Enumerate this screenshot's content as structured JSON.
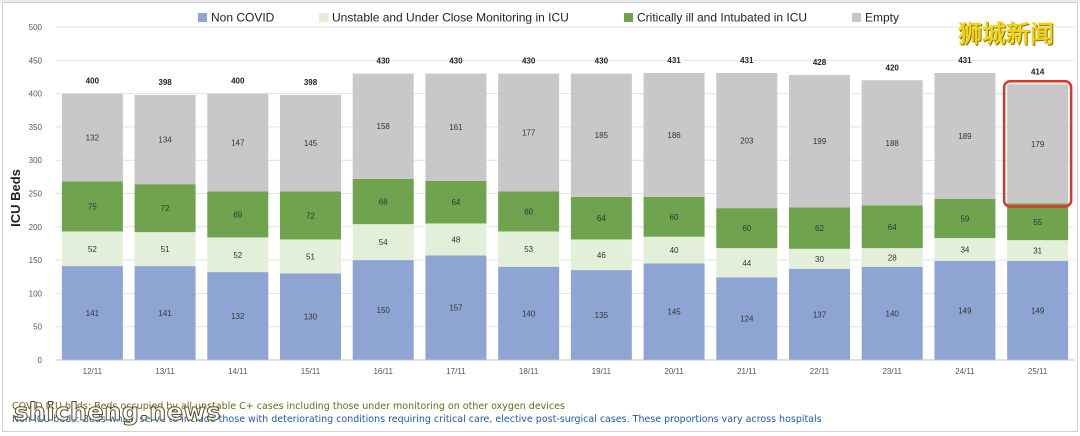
{
  "chart_data": {
    "type": "bar",
    "stacked": true,
    "title": "",
    "xlabel": "",
    "ylabel": "ICU Beds",
    "ylim": [
      0,
      500
    ],
    "yticks": [
      0,
      50,
      100,
      150,
      200,
      250,
      300,
      350,
      400,
      450,
      500
    ],
    "grid": true,
    "legend_position": "top",
    "categories": [
      "12/11",
      "13/11",
      "14/11",
      "15/11",
      "16/11",
      "17/11",
      "18/11",
      "19/11",
      "20/11",
      "21/11",
      "22/11",
      "23/11",
      "24/11",
      "25/11"
    ],
    "series": [
      {
        "name": "Non COVID",
        "color": "#8ea5d4",
        "values": [
          141,
          141,
          132,
          130,
          150,
          157,
          140,
          135,
          145,
          124,
          137,
          140,
          149,
          149
        ]
      },
      {
        "name": "Unstable and Under Close Monitoring in ICU",
        "color": "#e3efd9",
        "values": [
          52,
          51,
          52,
          51,
          54,
          48,
          53,
          46,
          40,
          44,
          30,
          28,
          34,
          31
        ]
      },
      {
        "name": "Critically ill and Intubated in ICU",
        "color": "#6fa34e",
        "values": [
          75,
          72,
          69,
          72,
          68,
          64,
          60,
          64,
          60,
          60,
          62,
          64,
          59,
          55
        ]
      },
      {
        "name": "Empty",
        "color": "#c9c7c8",
        "values": [
          132,
          134,
          147,
          145,
          158,
          161,
          177,
          185,
          186,
          203,
          199,
          188,
          189,
          179
        ]
      }
    ],
    "totals": [
      400,
      398,
      400,
      398,
      430,
      430,
      430,
      430,
      431,
      431,
      428,
      420,
      431,
      414
    ],
    "highlight": {
      "category": "25/11",
      "color": "#d9372a"
    }
  },
  "footnotes": {
    "line1": "COVID ICU beds: Beds occupied by all unstable C+ cases including those under monitoring on other oxygen devices",
    "line2": "Non ICU beds: Beds which serve to include those with deteriorating conditions requiring critical care, elective post-surgical cases. These proportions vary across hospitals"
  },
  "watermarks": {
    "latin": "shicheng.news",
    "cjk": "狮城新闻"
  }
}
